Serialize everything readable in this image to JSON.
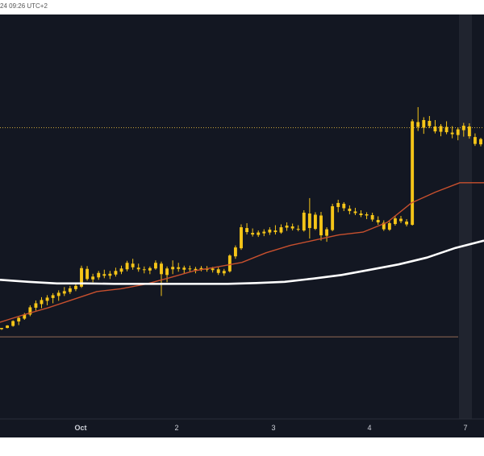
{
  "header": {
    "timestamp": "24 09:26 UTC+2"
  },
  "colors": {
    "background": "#131722",
    "candle": "#f5c518",
    "ma_fast": "#c8502e",
    "ma_slow": "#ffffff",
    "level_line": "#c8a43a",
    "support_line": "#7a5a4a"
  },
  "chart_data": {
    "type": "candlestick",
    "x_ticks": [
      "Oct",
      "2",
      "3",
      "4",
      "7"
    ],
    "grid": false,
    "legend": "none",
    "ylim": [
      0,
      100
    ],
    "horizontal_levels": [
      {
        "style": "dotted",
        "value": 72.0
      },
      {
        "style": "solid",
        "value": 20.3
      }
    ],
    "candles": [
      [
        22.2,
        22.5,
        22.0,
        22.5
      ],
      [
        22.5,
        23.2,
        22.4,
        23.1
      ],
      [
        23.0,
        24.4,
        22.8,
        24.2
      ],
      [
        24.1,
        25.2,
        23.2,
        25.0
      ],
      [
        24.8,
        26.2,
        24.5,
        25.8
      ],
      [
        25.8,
        28.1,
        25.4,
        27.6
      ],
      [
        27.5,
        29.3,
        26.8,
        28.6
      ],
      [
        28.4,
        30.1,
        27.4,
        29.4
      ],
      [
        29.2,
        30.6,
        28.1,
        30.0
      ],
      [
        29.9,
        31.1,
        28.6,
        30.6
      ],
      [
        30.4,
        31.8,
        29.2,
        31.2
      ],
      [
        31.0,
        32.6,
        30.4,
        31.6
      ],
      [
        31.4,
        32.9,
        30.9,
        32.3
      ],
      [
        32.1,
        33.6,
        31.6,
        32.9
      ],
      [
        32.7,
        37.9,
        32.4,
        37.3
      ],
      [
        37.1,
        37.8,
        34.2,
        34.6
      ],
      [
        34.5,
        35.9,
        33.8,
        35.2
      ],
      [
        35.0,
        36.6,
        34.4,
        36.1
      ],
      [
        35.8,
        36.9,
        34.8,
        35.4
      ],
      [
        35.4,
        36.6,
        34.6,
        35.9
      ],
      [
        35.7,
        37.4,
        35.2,
        36.6
      ],
      [
        36.4,
        37.9,
        35.8,
        37.2
      ],
      [
        37.0,
        39.1,
        36.5,
        38.6
      ],
      [
        38.4,
        39.6,
        36.9,
        37.5
      ],
      [
        37.4,
        38.4,
        36.4,
        37.0
      ],
      [
        37.0,
        37.7,
        36.0,
        36.8
      ],
      [
        36.7,
        37.7,
        35.8,
        37.3
      ],
      [
        37.2,
        39.2,
        36.9,
        38.6
      ],
      [
        38.4,
        38.9,
        30.4,
        35.8
      ],
      [
        35.6,
        37.7,
        33.8,
        37.2
      ],
      [
        37.0,
        39.2,
        35.8,
        37.6
      ],
      [
        37.5,
        38.6,
        36.4,
        37.1
      ],
      [
        36.9,
        37.9,
        36.0,
        37.4
      ],
      [
        37.2,
        37.9,
        36.4,
        37.0
      ],
      [
        36.8,
        37.6,
        36.0,
        37.1
      ],
      [
        37.0,
        37.8,
        36.5,
        37.3
      ],
      [
        37.1,
        37.8,
        36.4,
        36.9
      ],
      [
        36.8,
        37.6,
        36.2,
        37.2
      ],
      [
        37.0,
        37.5,
        35.6,
        36.1
      ],
      [
        36.0,
        37.1,
        35.4,
        36.6
      ],
      [
        36.5,
        40.7,
        36.2,
        40.4
      ],
      [
        40.2,
        42.9,
        39.6,
        42.4
      ],
      [
        42.2,
        48.1,
        41.8,
        47.4
      ],
      [
        47.2,
        48.4,
        45.6,
        46.2
      ],
      [
        46.0,
        47.1,
        45.1,
        45.6
      ],
      [
        45.5,
        46.6,
        45.0,
        46.1
      ],
      [
        45.9,
        46.9,
        45.2,
        46.3
      ],
      [
        46.1,
        47.4,
        45.5,
        46.8
      ],
      [
        46.6,
        47.9,
        45.6,
        46.2
      ],
      [
        46.1,
        48.1,
        45.8,
        47.4
      ],
      [
        47.3,
        48.6,
        46.5,
        47.8
      ],
      [
        47.6,
        48.3,
        46.6,
        47.1
      ],
      [
        47.0,
        47.9,
        46.4,
        46.8
      ],
      [
        46.6,
        51.6,
        46.3,
        51.0
      ],
      [
        50.8,
        54.6,
        44.6,
        47.2
      ],
      [
        47.0,
        51.1,
        46.7,
        50.5
      ],
      [
        50.3,
        51.2,
        44.1,
        45.4
      ],
      [
        45.3,
        47.4,
        43.8,
        46.9
      ],
      [
        46.7,
        53.2,
        46.4,
        52.6
      ],
      [
        52.4,
        54.2,
        51.1,
        53.4
      ],
      [
        53.2,
        53.6,
        51.4,
        52.1
      ],
      [
        52.0,
        52.8,
        50.6,
        51.4
      ],
      [
        51.3,
        52.2,
        50.4,
        50.9
      ],
      [
        50.8,
        51.6,
        49.9,
        50.4
      ],
      [
        50.3,
        51.1,
        49.4,
        50.6
      ],
      [
        50.4,
        51.0,
        48.8,
        49.3
      ],
      [
        49.2,
        50.1,
        48.0,
        48.6
      ],
      [
        48.5,
        49.1,
        46.5,
        46.9
      ],
      [
        46.8,
        48.9,
        46.5,
        48.4
      ],
      [
        48.2,
        50.1,
        47.8,
        49.6
      ],
      [
        49.5,
        50.2,
        48.4,
        48.9
      ],
      [
        48.8,
        49.4,
        47.6,
        48.1
      ],
      [
        48.0,
        74.1,
        47.8,
        73.6
      ],
      [
        73.4,
        77.1,
        71.2,
        72.2
      ],
      [
        72.0,
        74.6,
        70.5,
        73.9
      ],
      [
        73.7,
        74.9,
        71.9,
        72.4
      ],
      [
        72.3,
        73.9,
        70.6,
        71.1
      ],
      [
        71.0,
        72.9,
        69.9,
        72.4
      ],
      [
        72.2,
        73.6,
        70.4,
        70.9
      ],
      [
        70.8,
        72.4,
        69.4,
        70.4
      ],
      [
        70.2,
        72.1,
        68.9,
        71.6
      ],
      [
        71.4,
        73.2,
        69.8,
        72.5
      ],
      [
        72.3,
        73.1,
        69.3,
        69.9
      ],
      [
        69.7,
        70.6,
        67.5,
        68.0
      ],
      [
        67.9,
        69.5,
        67.4,
        69.2
      ]
    ],
    "series": [
      {
        "values": [
          34.4,
          33.9,
          33.5,
          33.5,
          33.4,
          33.4,
          33.4,
          33.4,
          33.4,
          33.6,
          33.9,
          34.7,
          35.6,
          36.9,
          38.2,
          39.9,
          42.3,
          44.1
        ]
      },
      {
        "values": [
          23.9,
          25.8,
          27.5,
          29.5,
          31.5,
          32.2,
          33.3,
          34.9,
          36.6,
          37.6,
          38.7,
          41.1,
          42.9,
          44.2,
          45.5,
          46.2,
          48.6,
          53.4,
          56.1,
          58.4,
          58.4
        ]
      }
    ]
  }
}
